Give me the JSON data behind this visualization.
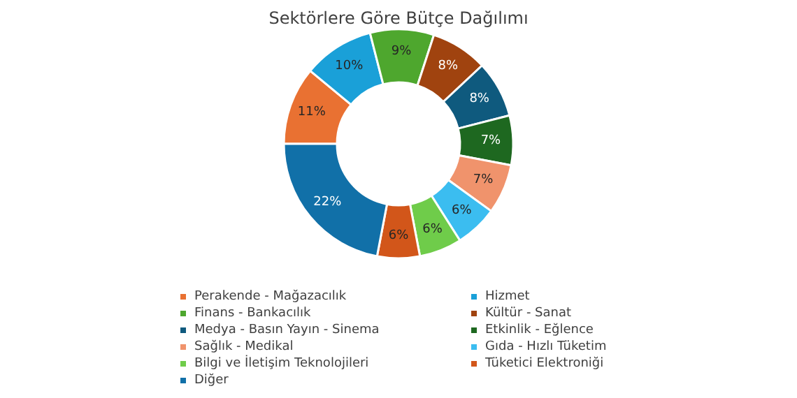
{
  "chart_data": {
    "type": "donut",
    "title": "Sektörlere Göre Bütçe Dağılımı",
    "categories": [
      "Perakende - Mağazacılık",
      "Hizmet",
      "Finans - Bankacılık",
      "Kültür - Sanat",
      "Medya - Basın Yayın - Sinema",
      "Etkinlik - Eğlence",
      "Sağlık - Medikal",
      "Gıda - Hızlı Tüketim",
      "Bilgi ve İletişim Teknolojileri",
      "Tüketici Elektroniği",
      "Diğer"
    ],
    "values": [
      11,
      10,
      9,
      8,
      8,
      7,
      7,
      6,
      6,
      6,
      22
    ],
    "colors": [
      "#e97132",
      "#1aa0d8",
      "#4ea72e",
      "#a0430f",
      "#0f5a7e",
      "#1e6820",
      "#f0936c",
      "#3bbdf0",
      "#6fcc4a",
      "#d2561a",
      "#1170a8"
    ],
    "value_labels": [
      "11%",
      "10%",
      "9%",
      "8%",
      "8%",
      "7%",
      "7%",
      "6%",
      "6%",
      "6%",
      "22%"
    ],
    "legend": "bottom"
  }
}
